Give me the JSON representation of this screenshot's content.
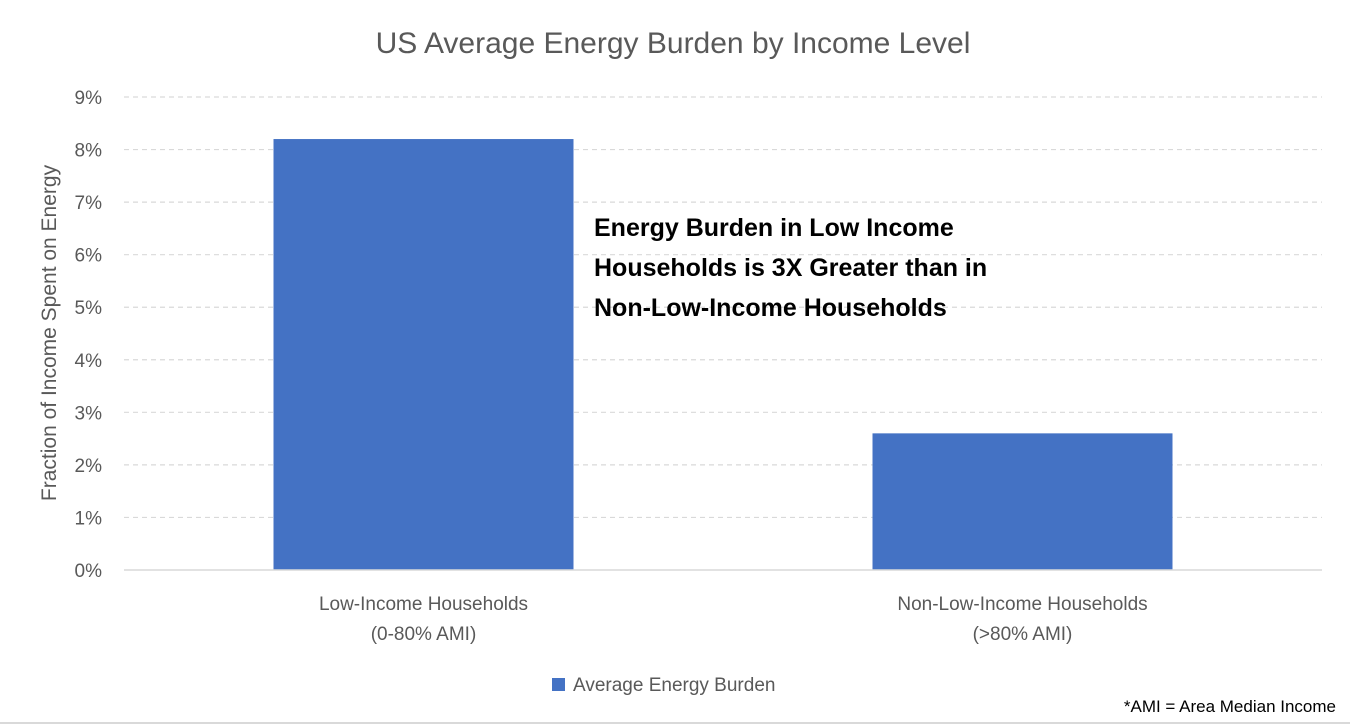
{
  "chart_data": {
    "type": "bar",
    "title": "US Average Energy Burden by Income Level",
    "ylabel": "Fraction of Income Spent on Energy",
    "xlabel": "",
    "categories": [
      [
        "Low-Income Households",
        "(0-80% AMI)"
      ],
      [
        "Non-Low-Income Households",
        "(>80% AMI)"
      ]
    ],
    "series": [
      {
        "name": "Average Energy Burden",
        "values": [
          8.2,
          2.6
        ],
        "color": "#4472C4"
      }
    ],
    "ylim": [
      0,
      9
    ],
    "yticks": [
      0,
      1,
      2,
      3,
      4,
      5,
      6,
      7,
      8,
      9
    ],
    "ytick_labels": [
      "0%",
      "1%",
      "2%",
      "3%",
      "4%",
      "5%",
      "6%",
      "7%",
      "8%",
      "9%"
    ],
    "grid": "horizontal dashed",
    "legend_position": "bottom-center",
    "annotation": [
      "Energy Burden in Low Income",
      "Households is 3X Greater than in",
      "Non-Low-Income Households"
    ],
    "footnote": "*AMI = Area Median Income"
  },
  "colors": {
    "bar": "#4472C4",
    "text_gray": "#595959",
    "grid": "#d9d9d9",
    "axis": "#d9d9d9",
    "annotation": "#000000"
  }
}
